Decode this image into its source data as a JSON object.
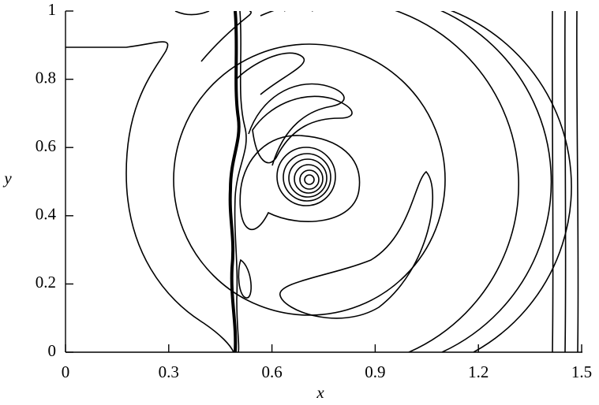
{
  "chart_data": {
    "type": "contour",
    "x_label": "x",
    "y_label": "y",
    "xlim": [
      0,
      1.5
    ],
    "ylim": [
      0,
      1
    ],
    "xticks": [
      0,
      0.3,
      0.6,
      0.9,
      1.2,
      1.5
    ],
    "yticks": [
      0,
      0.2,
      0.4,
      0.6,
      0.8,
      1
    ]
  }
}
